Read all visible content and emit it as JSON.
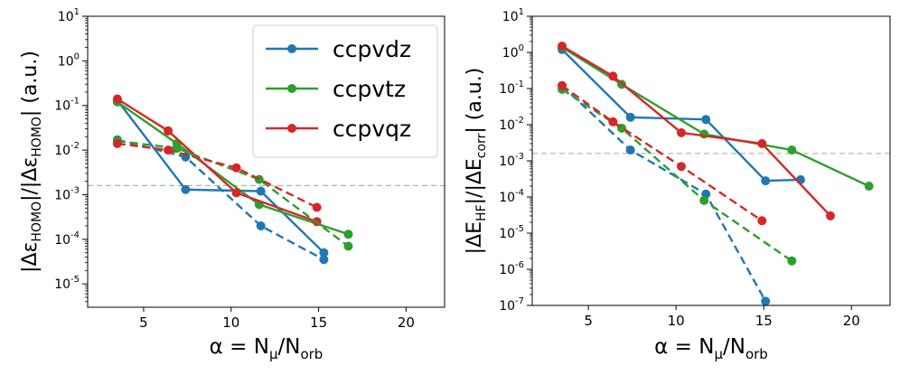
{
  "colors": {
    "ccpvdz": "#1f77b4",
    "ccpvtz": "#2ca02c",
    "ccpvqz": "#d62728",
    "threshold": "#b0b0b0"
  },
  "chart_data": [
    {
      "type": "line",
      "yscale": "log",
      "xlim": [
        1.8,
        22.2
      ],
      "ylim": [
        3e-06,
        10
      ],
      "xticks": [
        5,
        10,
        15,
        20
      ],
      "yticks_exp": [
        -5,
        -4,
        -3,
        -2,
        -1,
        0,
        1
      ],
      "xlabel_prefix": "α = N",
      "xlabel_sub1": "μ",
      "xlabel_mid": "/N",
      "xlabel_sub2": "orb",
      "ylabel": "|Δε_HOMO|/|Δε_HOMO| (a.u.)",
      "threshold": 0.0016,
      "legend": {
        "position": "top-right",
        "entries": [
          "ccpvdz",
          "ccpvtz",
          "ccpvqz"
        ]
      },
      "series": [
        {
          "name": "ccpvdz",
          "style": "solid",
          "x": [
            3.5,
            7.4,
            11.7,
            15.3
          ],
          "y": [
            0.13,
            0.0013,
            0.0012,
            5e-05
          ]
        },
        {
          "name": "ccpvtz",
          "style": "solid",
          "x": [
            3.5,
            6.9,
            11.6,
            16.7
          ],
          "y": [
            0.12,
            0.014,
            0.0006,
            0.00013
          ]
        },
        {
          "name": "ccpvqz",
          "style": "solid",
          "x": [
            3.5,
            6.4,
            10.3,
            14.9
          ],
          "y": [
            0.14,
            0.027,
            0.0011,
            0.00025
          ]
        },
        {
          "name": "ccpvdz",
          "style": "dashed",
          "x": [
            3.5,
            7.4,
            11.7,
            15.3
          ],
          "y": [
            0.017,
            0.007,
            0.0002,
            3.5e-05
          ]
        },
        {
          "name": "ccpvtz",
          "style": "dashed",
          "x": [
            3.5,
            6.9,
            11.6,
            16.7
          ],
          "y": [
            0.016,
            0.011,
            0.0022,
            7e-05
          ]
        },
        {
          "name": "ccpvqz",
          "style": "dashed",
          "x": [
            3.5,
            6.4,
            10.3,
            14.9
          ],
          "y": [
            0.014,
            0.01,
            0.004,
            0.00052
          ]
        }
      ]
    },
    {
      "type": "line",
      "yscale": "log",
      "xlim": [
        1.8,
        22.2
      ],
      "ylim": [
        1e-07,
        10
      ],
      "xticks": [
        5,
        10,
        15,
        20
      ],
      "yticks_exp": [
        -7,
        -6,
        -5,
        -4,
        -3,
        -2,
        -1,
        0,
        1
      ],
      "xlabel_prefix": "α = N",
      "xlabel_sub1": "μ",
      "xlabel_mid": "/N",
      "xlabel_sub2": "orb",
      "ylabel": "|ΔE_HF|/|ΔE_corr| (a.u.)",
      "threshold": 0.0016,
      "series": [
        {
          "name": "ccpvdz",
          "style": "solid",
          "x": [
            3.5,
            7.4,
            11.7,
            15.1,
            17.1
          ],
          "y": [
            1.2,
            0.016,
            0.014,
            0.00028,
            0.0003
          ]
        },
        {
          "name": "ccpvtz",
          "style": "solid",
          "x": [
            3.5,
            6.9,
            11.6,
            16.6,
            21.0
          ],
          "y": [
            1.4,
            0.13,
            0.0055,
            0.002,
            0.0002
          ]
        },
        {
          "name": "ccpvqz",
          "style": "solid",
          "x": [
            3.5,
            6.4,
            10.3,
            14.9,
            18.8
          ],
          "y": [
            1.5,
            0.22,
            0.006,
            0.003,
            3e-05
          ]
        },
        {
          "name": "ccpvdz",
          "style": "dashed",
          "x": [
            3.5,
            7.4,
            11.7,
            15.1
          ],
          "y": [
            0.12,
            0.002,
            0.00012,
            1.3e-07
          ]
        },
        {
          "name": "ccpvtz",
          "style": "dashed",
          "x": [
            3.5,
            6.9,
            11.6,
            16.6
          ],
          "y": [
            0.095,
            0.008,
            8e-05,
            1.7e-06
          ]
        },
        {
          "name": "ccpvqz",
          "style": "dashed",
          "x": [
            3.5,
            6.4,
            10.3,
            14.9
          ],
          "y": [
            0.12,
            0.012,
            0.0007,
            2.2e-05
          ]
        }
      ]
    }
  ]
}
